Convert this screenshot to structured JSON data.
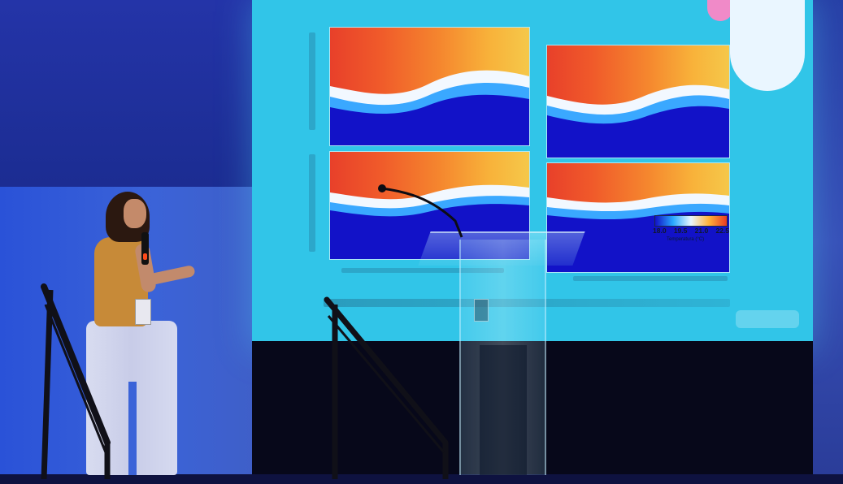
{
  "scene": {
    "description_type": "conference-talk-photo",
    "colors": {
      "screen": "#31c5e8",
      "room": "#1a2b8e",
      "stage": "#07081a",
      "heatmap_cold": "#1212c8",
      "heatmap_warm": "#e8402a"
    }
  },
  "slide": {
    "colorbar_ticks": [
      "18.0",
      "19.5",
      "21.0",
      "22.5"
    ],
    "colorbar_label": "Temperatura (°C)"
  },
  "icons": {
    "microphone": "microphone-icon",
    "logo": "conference-logo-icon"
  }
}
